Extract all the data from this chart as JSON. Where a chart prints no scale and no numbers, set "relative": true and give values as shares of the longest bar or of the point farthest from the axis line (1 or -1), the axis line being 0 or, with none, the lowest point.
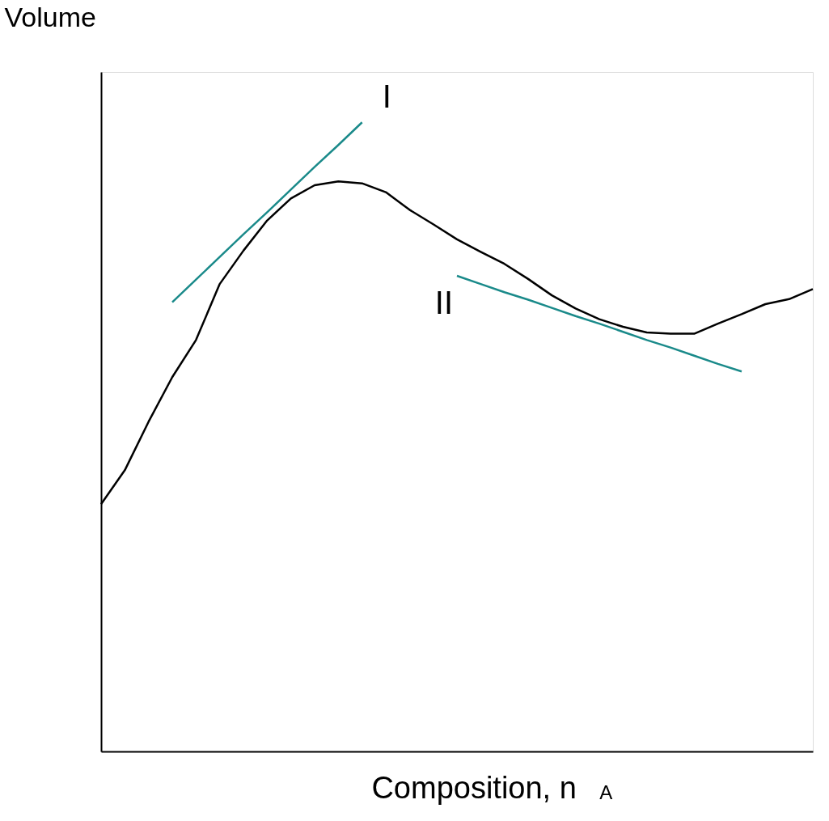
{
  "chart_data": {
    "type": "line",
    "relative": true,
    "xlabel": "Composition, n$_{A}$",
    "ylabel": "Volume",
    "tick_labels": false,
    "grid": false,
    "categories": [
      null,
      null,
      null,
      null,
      null,
      null,
      null,
      null,
      null,
      null,
      null,
      null,
      null,
      null,
      null,
      null,
      null,
      null,
      null,
      null,
      null,
      null,
      null,
      null,
      null,
      null,
      null,
      null,
      null,
      null,
      null
    ],
    "series": [
      {
        "color": "#000000",
        "values": [
          0.393,
          0.447,
          0.524,
          0.595,
          0.654,
          0.743,
          0.796,
          0.844,
          0.879,
          0.9,
          0.906,
          0.903,
          0.889,
          0.861,
          0.838,
          0.814,
          0.794,
          0.775,
          0.751,
          0.725,
          0.704,
          0.687,
          0.675,
          0.666,
          0.664,
          0.664,
          0.68,
          0.695,
          0.711,
          0.719,
          0.735
        ]
      },
      {
        "type": "line",
        "color": "#1a8a8a",
        "values": [
          null,
          null,
          null,
          0.714,
          0.75,
          0.786,
          0.822,
          0.857,
          0.893,
          0.929,
          0.964,
          1.0,
          null,
          null,
          null,
          null,
          null,
          null,
          null,
          null,
          null,
          null,
          null,
          null,
          null,
          null,
          null,
          null,
          null,
          null,
          null
        ]
      },
      {
        "type": "line",
        "color": "#1a8a8a",
        "values": [
          null,
          null,
          null,
          null,
          null,
          null,
          null,
          null,
          null,
          null,
          null,
          null,
          null,
          null,
          null,
          0.756,
          0.743,
          0.73,
          0.718,
          0.705,
          0.692,
          0.68,
          0.667,
          0.654,
          0.642,
          0.629,
          0.616,
          0.604,
          null,
          null,
          null
        ]
      }
    ],
    "annotations": [
      "I",
      "II"
    ]
  }
}
